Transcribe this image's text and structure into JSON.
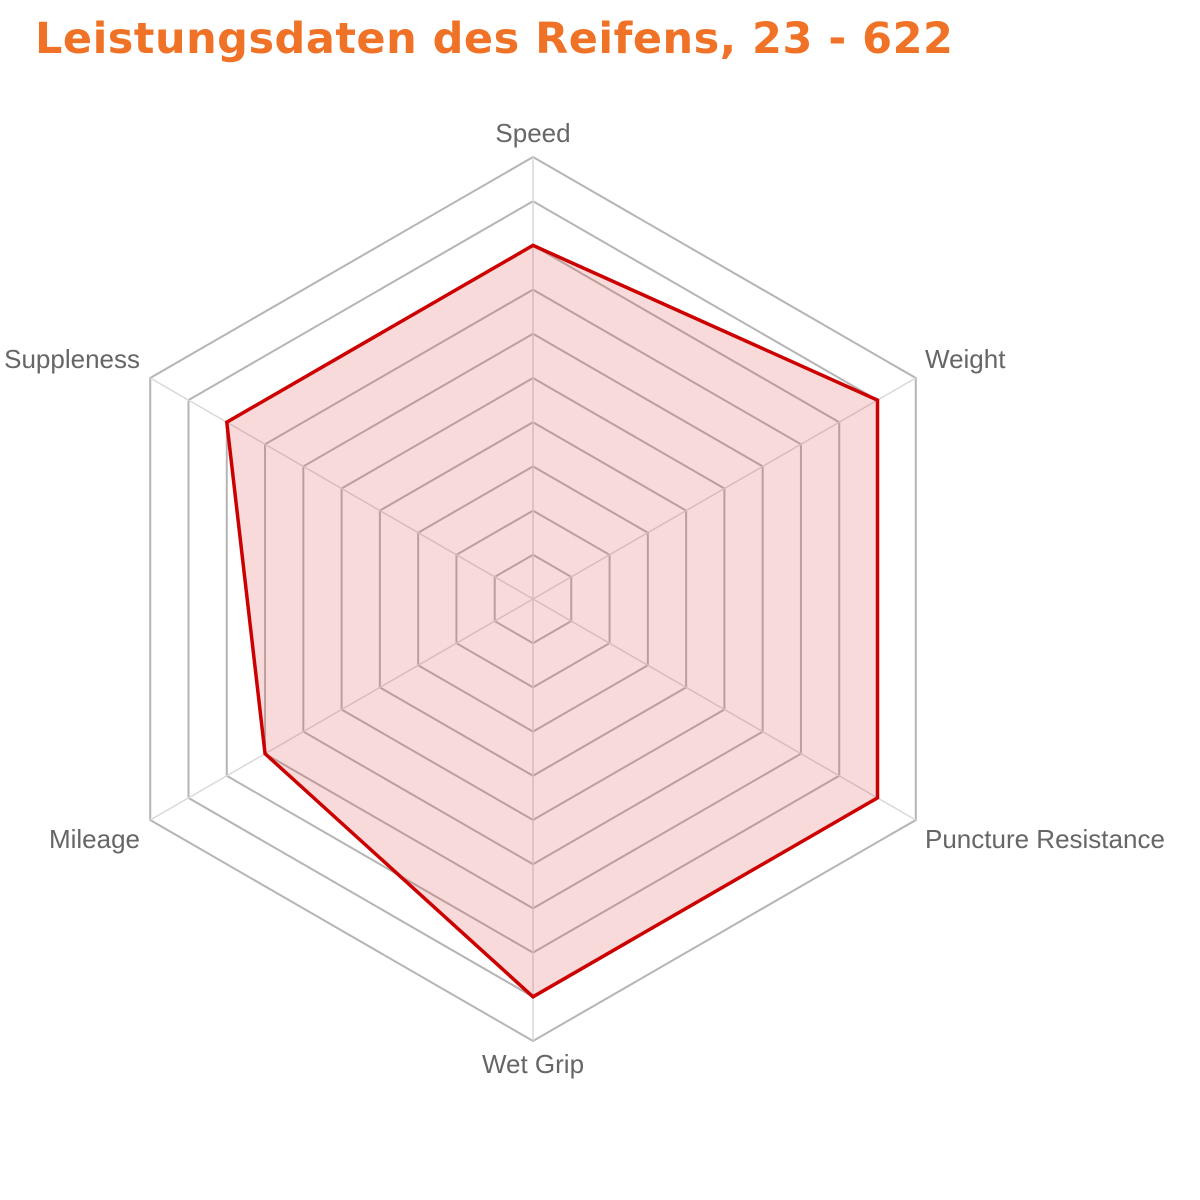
{
  "title": "Leistungsdaten des Reifens, 23 - 622",
  "colors": {
    "title": "#f07226",
    "series_line": "#cc0000",
    "series_fill": "rgba(220, 70, 70, 0.20)",
    "grid": "#b5b5b5",
    "label": "#666666"
  },
  "chart_data": {
    "type": "radar",
    "title": "Leistungsdaten des Reifens, 23 - 622",
    "categories": [
      "Speed",
      "Weight",
      "Puncture Resistance",
      "Wet Grip",
      "Mileage",
      "Suppleness"
    ],
    "series": [
      {
        "name": "23 - 622",
        "values": [
          8,
          9,
          9,
          9,
          7,
          8
        ]
      }
    ],
    "range": [
      0,
      10
    ],
    "grid_levels": 10,
    "legend": "none"
  }
}
